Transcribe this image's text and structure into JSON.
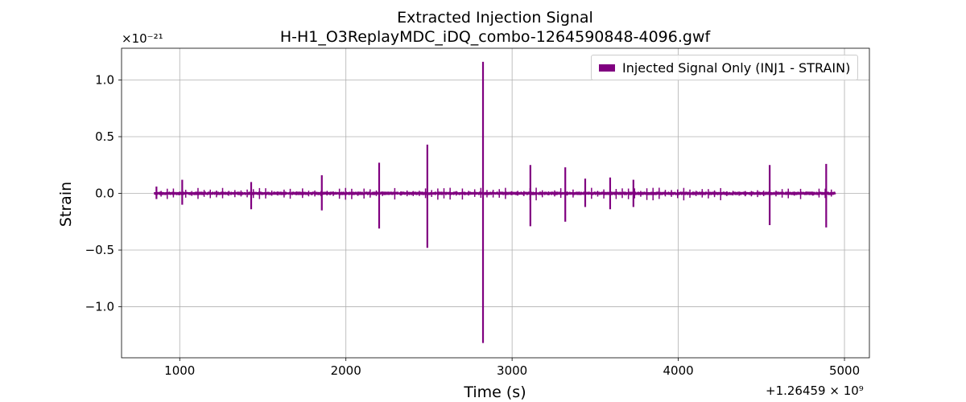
{
  "chart_data": {
    "type": "line",
    "title": "Extracted Injection Signal",
    "subtitle": "H-H1_O3ReplayMDC_iDQ_combo-1264590848-4096.gwf",
    "xlabel": "Time (s)",
    "ylabel": "Strain",
    "x_offset_label": "+1.26459 × 10⁹",
    "y_multiplier_label": "×10⁻²¹",
    "xlim": [
      650,
      5150
    ],
    "ylim": [
      -1.45,
      1.28
    ],
    "x_ticks": [
      1000,
      2000,
      3000,
      4000,
      5000
    ],
    "x_tick_labels": [
      "1000",
      "2000",
      "3000",
      "4000",
      "5000"
    ],
    "y_ticks": [
      -1.0,
      -0.5,
      0.0,
      0.5,
      1.0
    ],
    "y_tick_labels": [
      "−1.0",
      "−0.5",
      "0.0",
      "0.5",
      "1.0"
    ],
    "grid": true,
    "legend_position": "top-right",
    "series": [
      {
        "name": "Injected Signal Only (INJ1 - STRAIN)",
        "color": "#800080",
        "x_range": [
          848,
          4944
        ],
        "baseline_amplitude": 0.01,
        "spikes": [
          {
            "x": 860,
            "ymax": 0.06,
            "ymin": -0.05
          },
          {
            "x": 1015,
            "ymax": 0.12,
            "ymin": -0.1
          },
          {
            "x": 1430,
            "ymax": 0.1,
            "ymin": -0.14
          },
          {
            "x": 1855,
            "ymax": 0.16,
            "ymin": -0.15
          },
          {
            "x": 2200,
            "ymax": 0.27,
            "ymin": -0.31
          },
          {
            "x": 2490,
            "ymax": 0.43,
            "ymin": -0.48
          },
          {
            "x": 2825,
            "ymax": 1.16,
            "ymin": -1.32
          },
          {
            "x": 3110,
            "ymax": 0.25,
            "ymin": -0.29
          },
          {
            "x": 3320,
            "ymax": 0.23,
            "ymin": -0.25
          },
          {
            "x": 3440,
            "ymax": 0.13,
            "ymin": -0.12
          },
          {
            "x": 3590,
            "ymax": 0.14,
            "ymin": -0.14
          },
          {
            "x": 3730,
            "ymax": 0.12,
            "ymin": -0.12
          },
          {
            "x": 4550,
            "ymax": 0.25,
            "ymin": -0.28
          },
          {
            "x": 4890,
            "ymax": 0.26,
            "ymin": -0.3
          }
        ]
      }
    ]
  }
}
